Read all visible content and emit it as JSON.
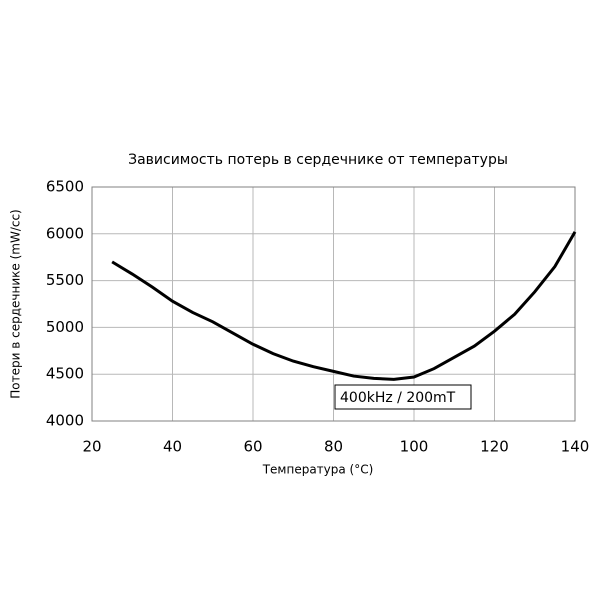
{
  "chart_data": {
    "type": "line",
    "title": "Зависимость потерь в сердечнике от температуры",
    "x_label": "Температура (°C)",
    "y_label": "Потери в сердечнике (mW/cc)",
    "annotation": "400kHz / 200mT",
    "x": [
      25,
      30,
      35,
      40,
      45,
      50,
      55,
      60,
      65,
      70,
      75,
      80,
      85,
      90,
      95,
      100,
      105,
      110,
      115,
      120,
      125,
      130,
      135,
      140
    ],
    "series": [
      {
        "color": "#000000",
        "values": [
          5700,
          5570,
          5430,
          5280,
          5160,
          5060,
          4940,
          4820,
          4720,
          4640,
          4580,
          4530,
          4480,
          4455,
          4445,
          4470,
          4560,
          4680,
          4800,
          4960,
          5140,
          5380,
          5650,
          6020
        ]
      }
    ],
    "xlim": [
      20,
      140
    ],
    "xticks": [
      20,
      40,
      60,
      80,
      100,
      120,
      140
    ],
    "ylim": [
      4000,
      6500
    ],
    "yticks": [
      4000,
      4500,
      5000,
      5500,
      6000,
      6500
    ],
    "grid": true
  }
}
